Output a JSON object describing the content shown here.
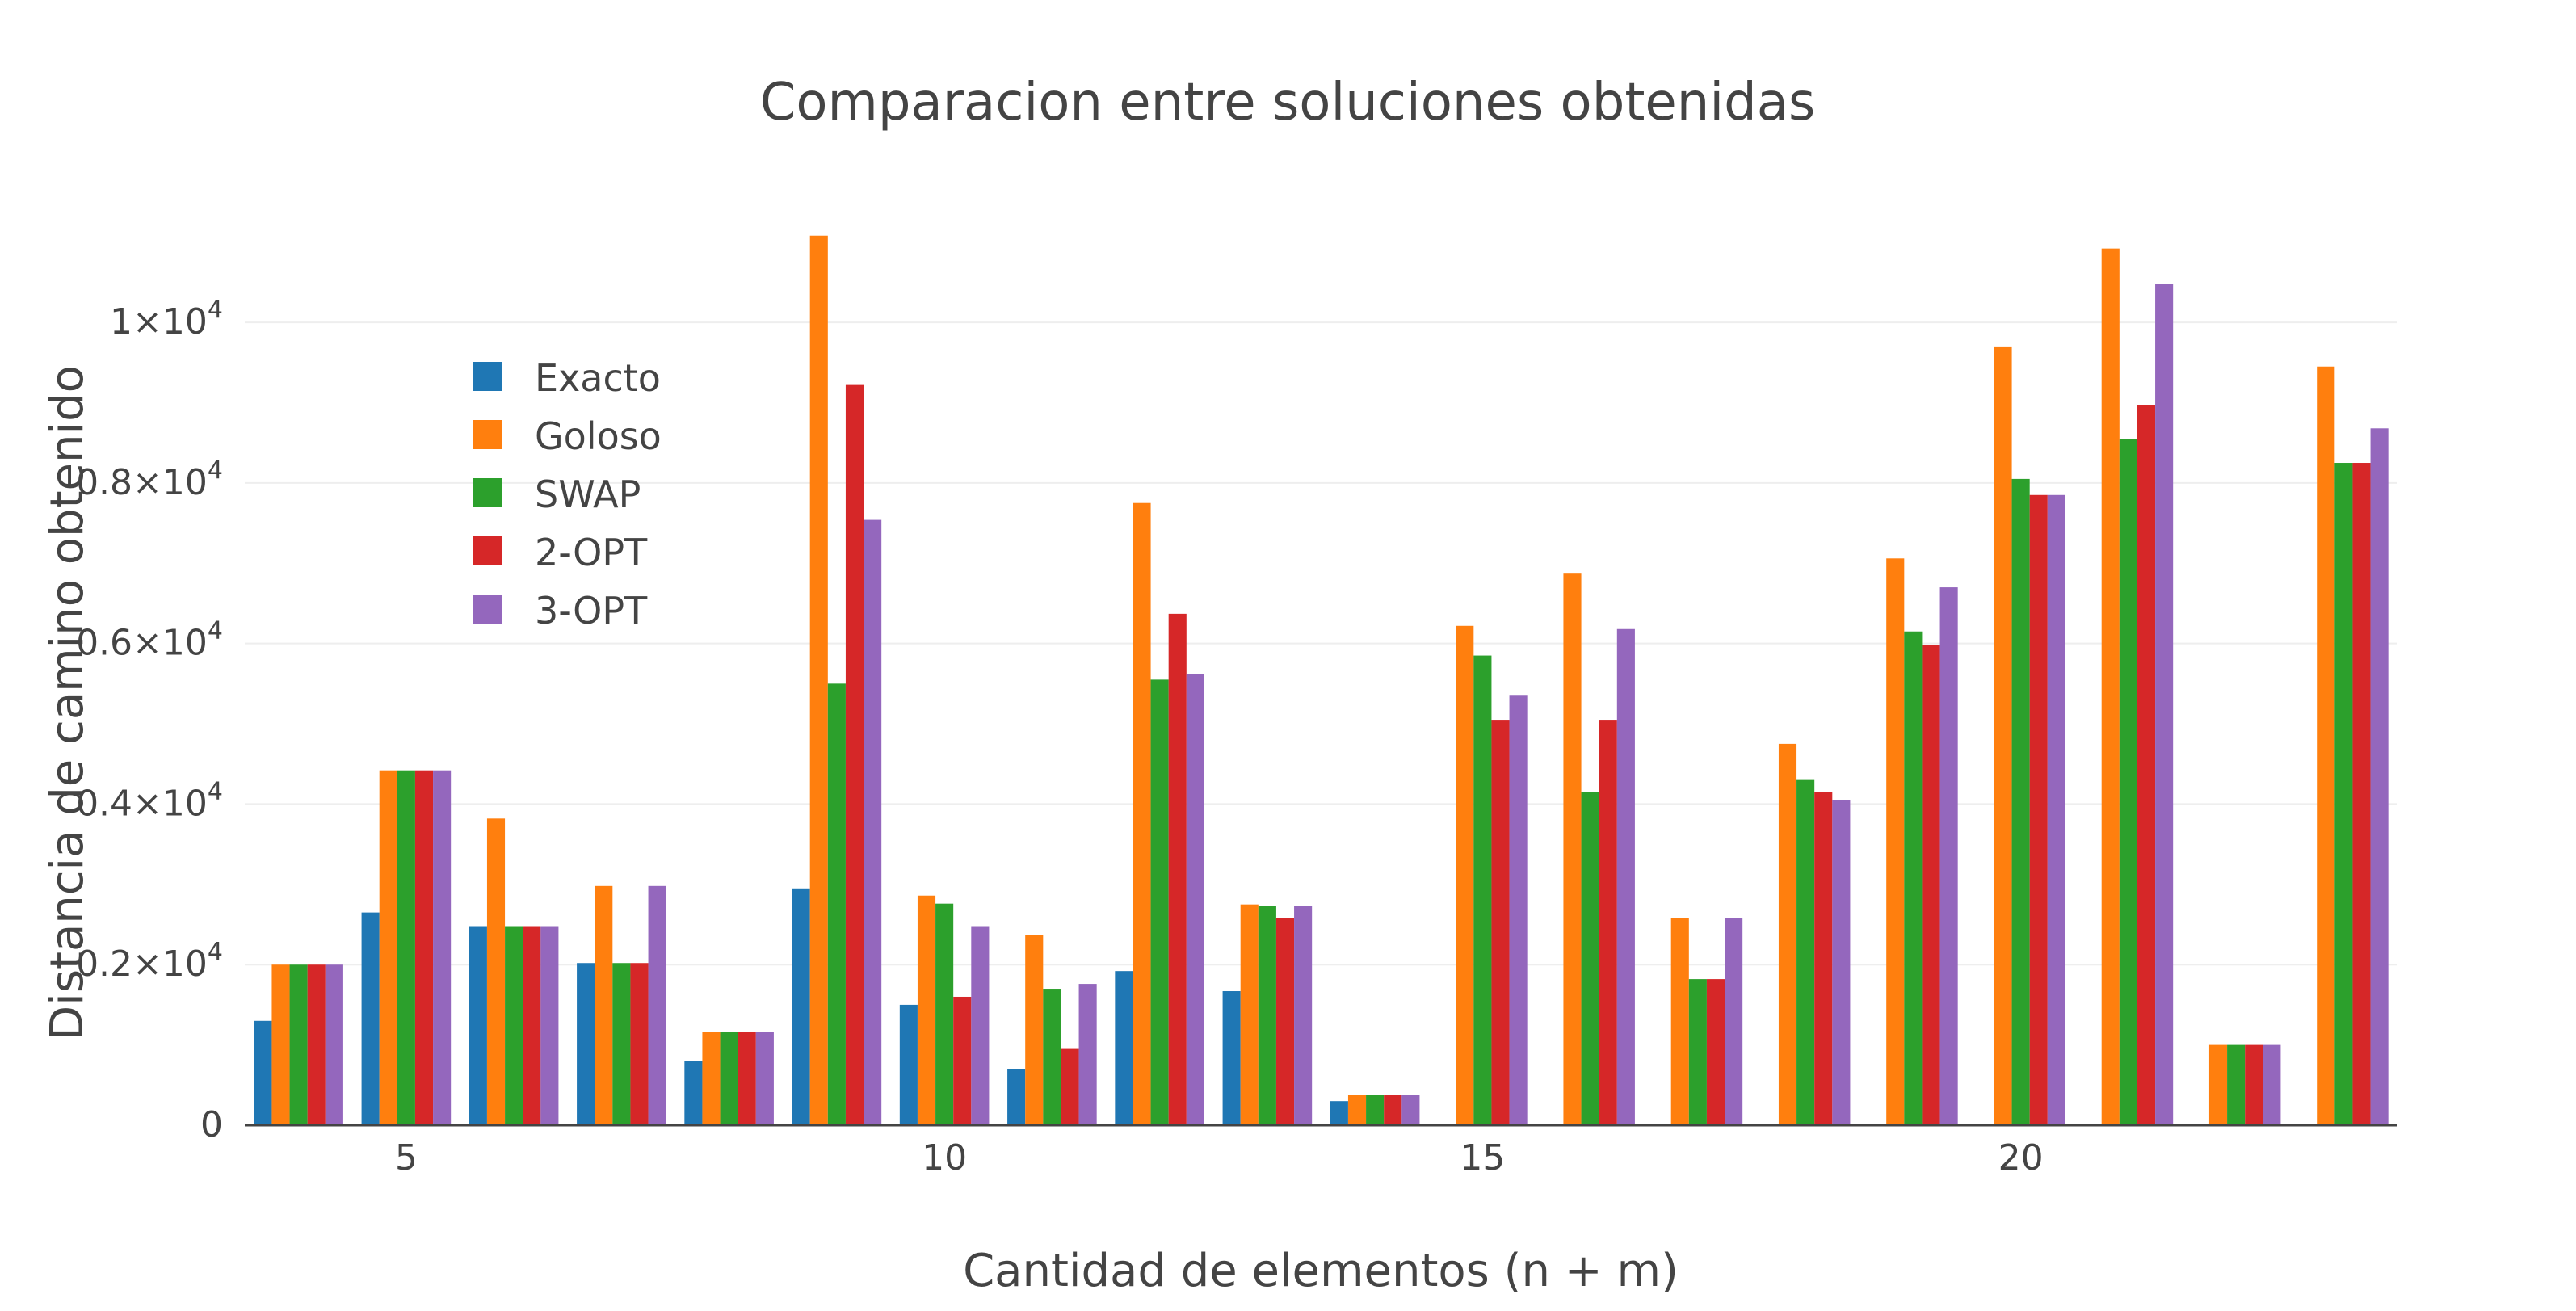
{
  "chart_data": {
    "type": "bar",
    "title": "Comparacion entre soluciones obtenidas",
    "xlabel": "Cantidad de elementos (n + m)",
    "ylabel": "Distancia de camino obtenido",
    "categories": [
      4,
      5,
      6,
      7,
      8,
      9,
      10,
      11,
      12,
      13,
      14,
      15,
      16,
      17,
      18,
      19,
      20,
      21,
      22,
      23
    ],
    "x_ticks": [
      {
        "value": 5,
        "label": "5"
      },
      {
        "value": 10,
        "label": "10"
      },
      {
        "value": 15,
        "label": "15"
      },
      {
        "value": 20,
        "label": "20"
      }
    ],
    "y_ticks": [
      {
        "value": 0,
        "base": "0",
        "exp": ""
      },
      {
        "value": 2000,
        "base": "0.2×10",
        "exp": "4"
      },
      {
        "value": 4000,
        "base": "0.4×10",
        "exp": "4"
      },
      {
        "value": 6000,
        "base": "0.6×10",
        "exp": "4"
      },
      {
        "value": 8000,
        "base": "0.8×10",
        "exp": "4"
      },
      {
        "value": 10000,
        "base": "1×10",
        "exp": "4"
      }
    ],
    "xlim": [
      3.5,
      23.5
    ],
    "ylim": [
      0,
      11500
    ],
    "grid": true,
    "legend_position": "top-left",
    "series": [
      {
        "name": "Exacto",
        "color": "#1f77b4",
        "values": [
          1300,
          2650,
          2480,
          2020,
          800,
          2950,
          1500,
          700,
          1920,
          1670,
          300,
          null,
          null,
          null,
          null,
          null,
          null,
          null,
          null,
          null
        ]
      },
      {
        "name": "Goloso",
        "color": "#ff7f0e",
        "values": [
          2000,
          4420,
          3820,
          2980,
          1160,
          11080,
          2860,
          2370,
          7750,
          2750,
          380,
          6220,
          6880,
          2580,
          4750,
          7060,
          9700,
          10920,
          1000,
          9450
        ]
      },
      {
        "name": "SWAP",
        "color": "#2ca02c",
        "values": [
          2000,
          4420,
          2480,
          2020,
          1160,
          5500,
          2760,
          1700,
          5550,
          2730,
          380,
          5850,
          4150,
          1820,
          4300,
          6150,
          8050,
          8550,
          1000,
          8250
        ]
      },
      {
        "name": "2-OPT",
        "color": "#d62728",
        "values": [
          2000,
          4420,
          2480,
          2020,
          1160,
          9220,
          1600,
          950,
          6370,
          2580,
          380,
          5050,
          5050,
          1820,
          4150,
          5980,
          7850,
          8970,
          1000,
          8250
        ]
      },
      {
        "name": "3-OPT",
        "color": "#9467bd",
        "values": [
          2000,
          4420,
          2480,
          2980,
          1160,
          7540,
          2480,
          1760,
          5620,
          2730,
          380,
          5350,
          6180,
          2580,
          4050,
          6700,
          7850,
          10480,
          1000,
          8680
        ]
      }
    ]
  }
}
